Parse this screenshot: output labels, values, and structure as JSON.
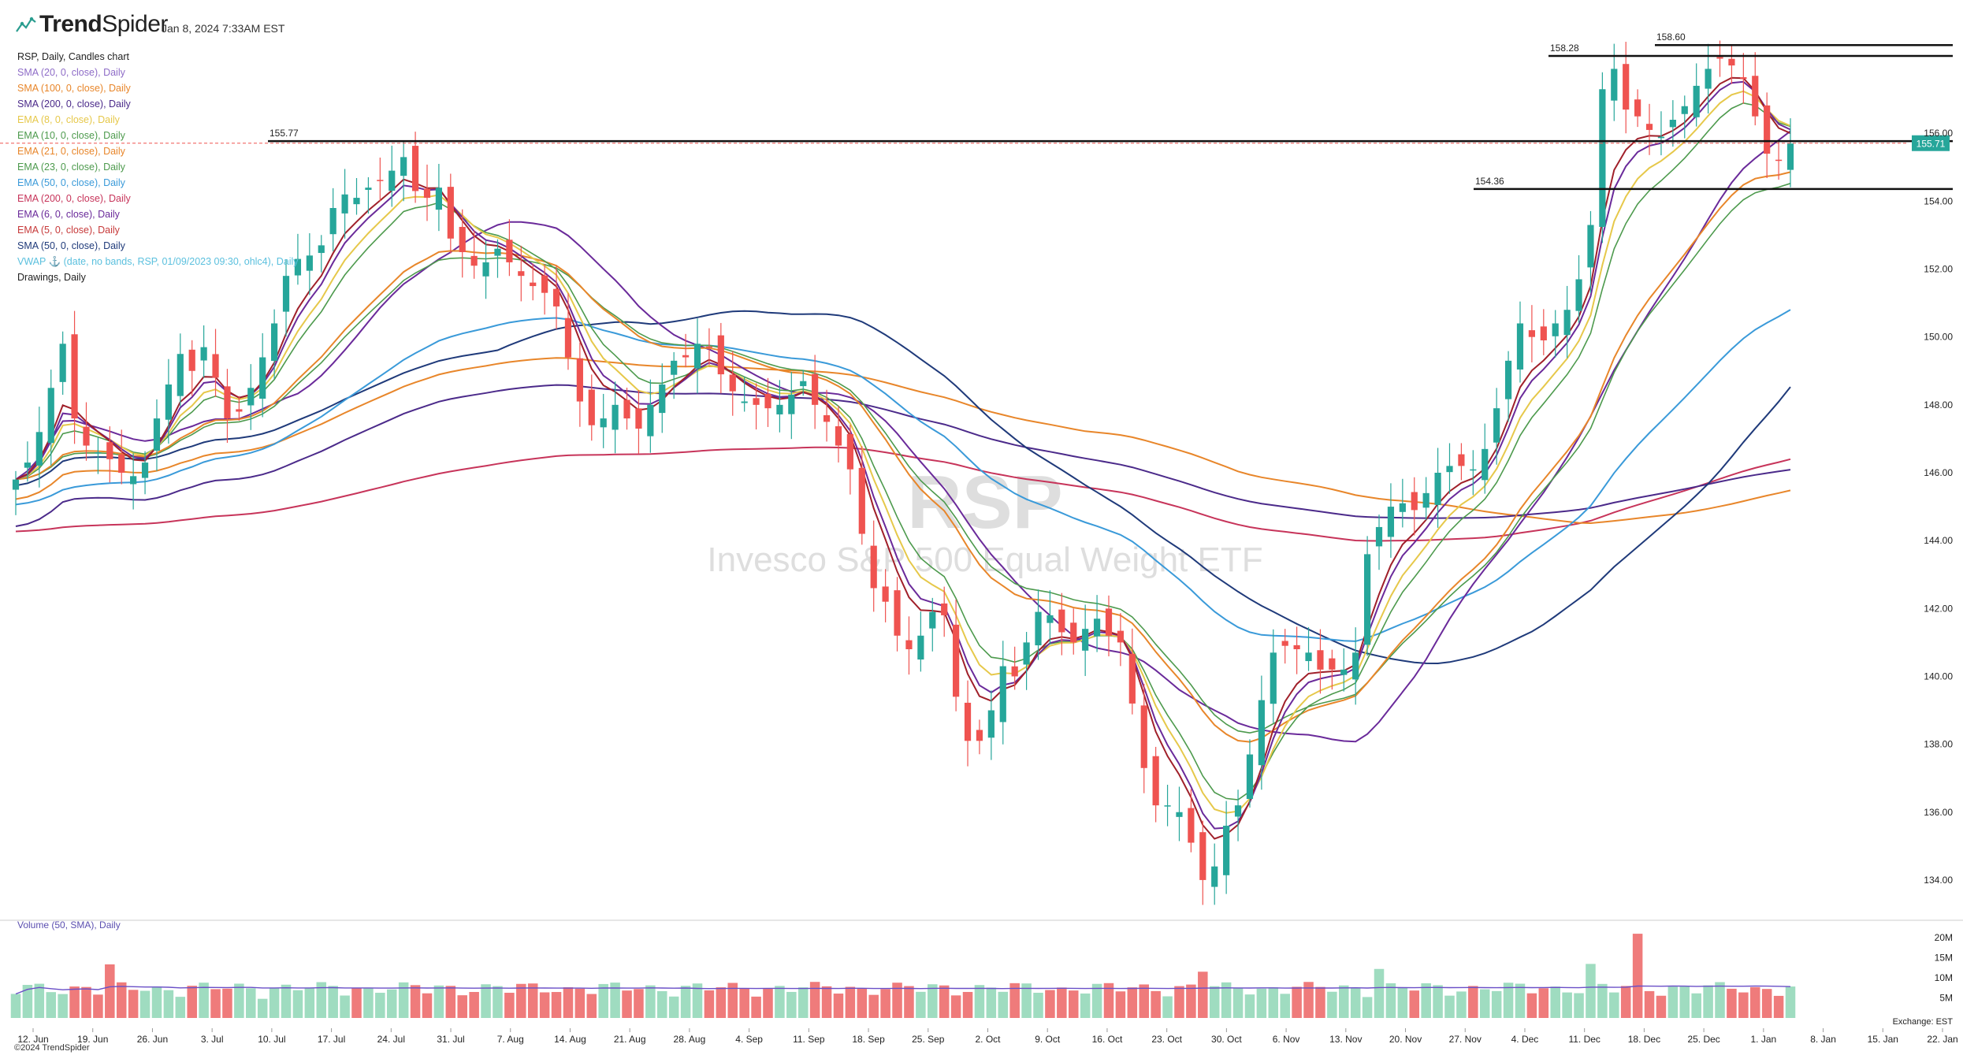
{
  "header": {
    "brand_trend": "Trend",
    "brand_spider": "Spider",
    "timestamp": "Jan 8, 2024 7:33AM EST"
  },
  "legend": [
    {
      "label": "RSP, Daily, Candles chart",
      "color": "#222222"
    },
    {
      "label": "SMA (20, 0, close), Daily",
      "color": "#8e6cc7"
    },
    {
      "label": "SMA (100, 0, close), Daily",
      "color": "#e8862a"
    },
    {
      "label": "SMA (200, 0, close), Daily",
      "color": "#4b2a8a"
    },
    {
      "label": "EMA (8, 0, close), Daily",
      "color": "#e6c84a"
    },
    {
      "label": "EMA (10, 0, close), Daily",
      "color": "#4d9a4d"
    },
    {
      "label": "EMA (21, 0, close), Daily",
      "color": "#e8862a"
    },
    {
      "label": "EMA (23, 0, close), Daily",
      "color": "#4d9a4d"
    },
    {
      "label": "EMA (50, 0, close), Daily",
      "color": "#3a9ad9"
    },
    {
      "label": "EMA (200, 0, close), Daily",
      "color": "#c7345a"
    },
    {
      "label": "EMA (6, 0, close), Daily",
      "color": "#6a2a9a"
    },
    {
      "label": "EMA (5, 0, close), Daily",
      "color": "#c73a3a"
    },
    {
      "label": "SMA (50, 0, close), Daily",
      "color": "#1f3a7a"
    },
    {
      "label": "VWAP ⚓ (date, no bands, RSP, 01/09/2023 09:30, ohlc4), Daily",
      "color": "#5bc0de"
    },
    {
      "label": "Drawings, Daily",
      "color": "#222222"
    }
  ],
  "footer": {
    "copyright": "©2024 TrendSpider"
  },
  "watermark": {
    "ticker": "RSP",
    "name": "Invesco S&P 500 Equal Weight ETF"
  },
  "colors": {
    "up": "#26a69a",
    "down": "#ef5350",
    "vol_up": "#9fdcc0",
    "vol_down": "#ef7b7b",
    "last_price_bg": "#26a69a"
  },
  "chart_data": {
    "type": "candlestick",
    "title": "RSP, Daily, Candles chart",
    "ylim": [
      133,
      159
    ],
    "y_ticks": [
      "134.00",
      "136.00",
      "138.00",
      "140.00",
      "142.00",
      "144.00",
      "146.00",
      "148.00",
      "150.00",
      "152.00",
      "154.00",
      "156.00"
    ],
    "x_ticks": [
      "12. Jun",
      "19. Jun",
      "26. Jun",
      "3. Jul",
      "10. Jul",
      "17. Jul",
      "24. Jul",
      "31. Jul",
      "7. Aug",
      "14. Aug",
      "21. Aug",
      "28. Aug",
      "4. Sep",
      "11. Sep",
      "18. Sep",
      "25. Sep",
      "2. Oct",
      "9. Oct",
      "16. Oct",
      "23. Oct",
      "30. Oct",
      "6. Nov",
      "13. Nov",
      "20. Nov",
      "27. Nov",
      "4. Dec",
      "11. Dec",
      "18. Dec",
      "25. Dec",
      "1. Jan",
      "8. Jan",
      "15. Jan",
      "22. Jan"
    ],
    "last_price": "155.71",
    "horizontal_levels": [
      {
        "label": "155.77",
        "value": 155.77
      },
      {
        "label": "158.28",
        "value": 158.28
      },
      {
        "label": "158.60",
        "value": 158.6
      },
      {
        "label": "154.36",
        "value": 154.36
      }
    ],
    "close": [
      145.8,
      146.3,
      147.2,
      148.5,
      149.8,
      147.6,
      146.8,
      146.6,
      146.4,
      146.0,
      145.9,
      146.3,
      147.6,
      148.6,
      149.5,
      149.0,
      149.7,
      148.8,
      147.6,
      147.8,
      148.5,
      149.4,
      150.4,
      151.8,
      152.3,
      152.4,
      152.7,
      153.8,
      154.2,
      154.1,
      154.4,
      154.6,
      154.9,
      155.3,
      154.3,
      154.1,
      154.4,
      152.9,
      152.5,
      152.1,
      152.2,
      152.6,
      152.2,
      151.8,
      151.5,
      151.3,
      150.9,
      149.4,
      148.1,
      147.4,
      147.6,
      148.0,
      147.6,
      147.3,
      148.0,
      148.6,
      149.3,
      149.4,
      149.8,
      149.7,
      148.9,
      148.4,
      148.1,
      148.0,
      147.9,
      148.0,
      148.3,
      148.7,
      148.0,
      147.5,
      146.8,
      146.1,
      144.2,
      142.6,
      142.2,
      141.2,
      140.8,
      141.2,
      141.9,
      141.8,
      139.4,
      138.1,
      138.1,
      139.0,
      140.3,
      140.0,
      141.0,
      141.9,
      141.8,
      141.3,
      141.0,
      141.4,
      141.7,
      141.2,
      141.0,
      139.2,
      137.3,
      136.2,
      136.2,
      136.0,
      135.1,
      134.0,
      134.4,
      135.6,
      136.2,
      137.7,
      139.3,
      140.7,
      140.9,
      140.8,
      140.7,
      140.2,
      140.2,
      140.2,
      140.7,
      143.6,
      144.4,
      145.0,
      145.1,
      144.9,
      145.4,
      146.0,
      146.2,
      146.2,
      146.1,
      146.7,
      147.9,
      149.3,
      150.4,
      150.0,
      149.9,
      150.4,
      150.8,
      151.7,
      153.3,
      157.3,
      157.9,
      156.7,
      156.5,
      156.1,
      155.9,
      156.4,
      156.8,
      157.4,
      157.9,
      158.2,
      158.0,
      157.6,
      156.5,
      155.4,
      155.2,
      155.7
    ],
    "volume_ylim": [
      0,
      22
    ],
    "volume_ticks": [
      "5M",
      "10M",
      "15M",
      "20M"
    ],
    "volume_label": "Volume (50, SMA), Daily",
    "exchange_label": "Exchange: EST"
  }
}
